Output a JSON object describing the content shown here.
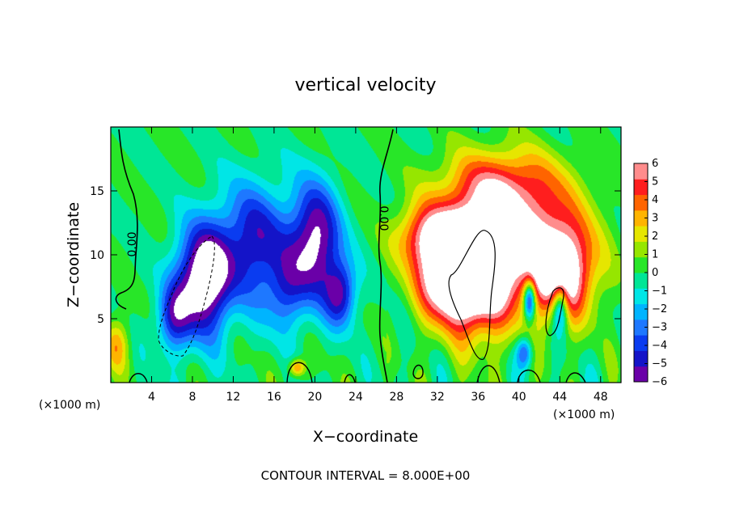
{
  "chart_data": {
    "type": "heatmap",
    "title": "vertical velocity",
    "xlabel": "X−coordinate",
    "ylabel": "Z−coordinate",
    "x_unit_left": "(×1000 m)",
    "x_unit_right": "(×1000 m)",
    "xlim": [
      0,
      50
    ],
    "ylim": [
      0,
      20
    ],
    "x_ticks": [
      4,
      8,
      12,
      16,
      20,
      24,
      28,
      32,
      36,
      40,
      44,
      48
    ],
    "x_tick_labels": [
      "4",
      "8",
      "12",
      "16",
      "20",
      "24",
      "28",
      "32",
      "36",
      "40",
      "44",
      "48"
    ],
    "y_ticks": [
      5,
      10,
      15
    ],
    "y_tick_labels": [
      "5",
      "10",
      "15"
    ],
    "contour_labels": [
      "0.00",
      "0.00"
    ],
    "footer": "CONTOUR INTERVAL = 8.000E+00",
    "colorbar": {
      "min": -6,
      "max": 6,
      "tick_labels": [
        "6",
        "5",
        "4",
        "3",
        "2",
        "1",
        "0",
        "−1",
        "−2",
        "−3",
        "−4",
        "−5",
        "−6"
      ],
      "colors": [
        "#6a00a8",
        "#1414c8",
        "#0a3cf0",
        "#1e78ff",
        "#00b4ff",
        "#00e6e6",
        "#00e696",
        "#28e628",
        "#96e600",
        "#e6e600",
        "#ffb400",
        "#ff6400",
        "#ff1e1e",
        "#ff8c8c"
      ]
    },
    "features": [
      {
        "type": "downdraft",
        "x": 9,
        "z": 8,
        "sx": 2.6,
        "sz": 4.2,
        "amp": -8
      },
      {
        "type": "downdraft",
        "x": 6,
        "z": 5,
        "sx": 1.6,
        "sz": 2.6,
        "amp": -4
      },
      {
        "type": "downdraft",
        "x": 14,
        "z": 11,
        "sx": 3.5,
        "sz": 4.5,
        "amp": -5
      },
      {
        "type": "downdraft",
        "x": 20,
        "z": 11,
        "sx": 2.4,
        "sz": 4.5,
        "amp": -6.5
      },
      {
        "type": "downdraft",
        "x": 22.5,
        "z": 7,
        "sx": 1.5,
        "sz": 2.5,
        "amp": -5
      },
      {
        "type": "downdraft",
        "x": 17,
        "z": 7,
        "sx": 2.0,
        "sz": 3.0,
        "amp": -3
      },
      {
        "type": "downdraft",
        "x": 40.5,
        "z": 2.4,
        "sx": 0.8,
        "sz": 1.2,
        "amp": -4
      },
      {
        "type": "downdraft",
        "x": 41,
        "z": 6.5,
        "sx": 0.6,
        "sz": 1.6,
        "amp": -7
      },
      {
        "type": "downdraft",
        "x": 44,
        "z": 6,
        "sx": 0.8,
        "sz": 2.0,
        "amp": -6
      },
      {
        "type": "updraft",
        "x": 36,
        "z": 9,
        "sx": 3.8,
        "sz": 4.8,
        "amp": 10
      },
      {
        "type": "updraft",
        "x": 33,
        "z": 8,
        "sx": 3.0,
        "sz": 3.0,
        "amp": 6
      },
      {
        "type": "updraft",
        "x": 44,
        "z": 8.5,
        "sx": 3.2,
        "sz": 3.6,
        "amp": 8
      },
      {
        "type": "updraft",
        "x": 31,
        "z": 11.5,
        "sx": 3.0,
        "sz": 2.5,
        "amp": 5
      },
      {
        "type": "updraft",
        "x": 40,
        "z": 12.5,
        "sx": 6.0,
        "sz": 4.2,
        "amp": 5
      },
      {
        "type": "updraft",
        "x": 38,
        "z": 16,
        "sx": 6.0,
        "sz": 2.5,
        "amp": 2.5
      },
      {
        "type": "updraft",
        "x": 18.2,
        "z": 1.2,
        "sx": 0.8,
        "sz": 0.7,
        "amp": 4
      },
      {
        "type": "updraft",
        "x": 0.5,
        "z": 3,
        "sx": 1.2,
        "sz": 2.0,
        "amp": 3
      }
    ]
  }
}
